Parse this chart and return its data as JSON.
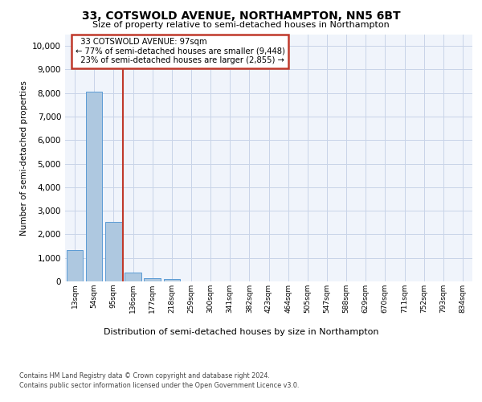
{
  "title": "33, COTSWOLD AVENUE, NORTHAMPTON, NN5 6BT",
  "subtitle": "Size of property relative to semi-detached houses in Northampton",
  "xlabel": "Distribution of semi-detached houses by size in Northampton",
  "ylabel": "Number of semi-detached properties",
  "property_label": "33 COTSWOLD AVENUE: 97sqm",
  "pct_smaller": 77,
  "count_smaller": "9,448",
  "pct_larger": 23,
  "count_larger": "2,855",
  "bar_labels": [
    "13sqm",
    "54sqm",
    "95sqm",
    "136sqm",
    "177sqm",
    "218sqm",
    "259sqm",
    "300sqm",
    "341sqm",
    "382sqm",
    "423sqm",
    "464sqm",
    "505sqm",
    "547sqm",
    "588sqm",
    "629sqm",
    "670sqm",
    "711sqm",
    "752sqm",
    "793sqm",
    "834sqm"
  ],
  "bar_values": [
    1320,
    8050,
    2520,
    390,
    130,
    90,
    0,
    0,
    0,
    0,
    0,
    0,
    0,
    0,
    0,
    0,
    0,
    0,
    0,
    0,
    0
  ],
  "bar_color": "#aec8e0",
  "bar_edge_color": "#5b9bd5",
  "vline_index": 2.5,
  "vline_color": "#c0392b",
  "annotation_box_color": "#c0392b",
  "grid_color": "#c8d4e8",
  "background_color": "#f0f4fb",
  "yticks": [
    0,
    1000,
    2000,
    3000,
    4000,
    5000,
    6000,
    7000,
    8000,
    9000,
    10000
  ],
  "ylim": [
    0,
    10500
  ],
  "footer_line1": "Contains HM Land Registry data © Crown copyright and database right 2024.",
  "footer_line2": "Contains public sector information licensed under the Open Government Licence v3.0."
}
